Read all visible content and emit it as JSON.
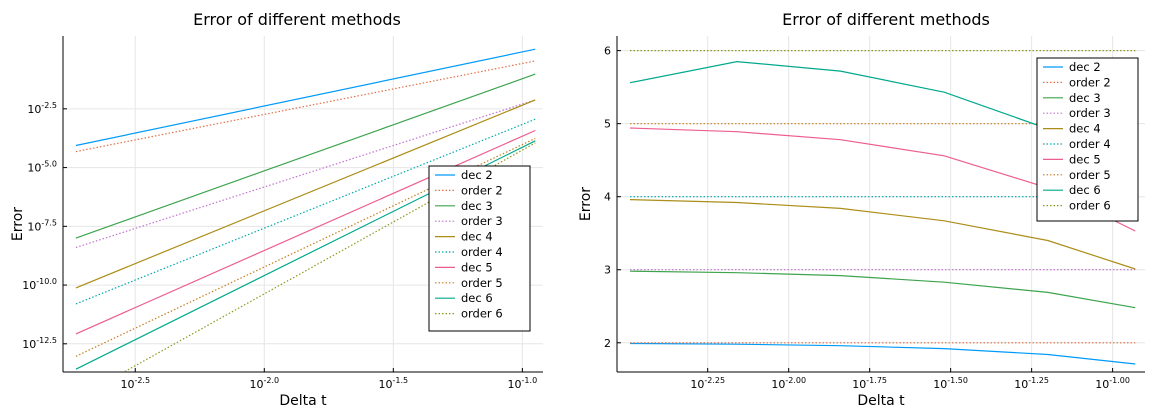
{
  "chart_data": [
    {
      "type": "line",
      "title": "Error of different methods",
      "xlabel": "Delta t",
      "ylabel": "Error",
      "x_scale": "log10",
      "y_scale": "log10",
      "xlim_log10": [
        -2.78,
        -0.92
      ],
      "ylim_log10": [
        -13.7,
        0.6
      ],
      "x_ticks": [
        {
          "value": -2.5,
          "base": "10",
          "exp": "-2.5"
        },
        {
          "value": -2.0,
          "base": "10",
          "exp": "-2.0"
        },
        {
          "value": -1.5,
          "base": "10",
          "exp": "-1.5"
        },
        {
          "value": -1.0,
          "base": "10",
          "exp": "-1.0"
        }
      ],
      "y_ticks": [
        {
          "value": -2.5,
          "base": "10",
          "exp": "-2.5"
        },
        {
          "value": -5.0,
          "base": "10",
          "exp": "-5.0"
        },
        {
          "value": -7.5,
          "base": "10",
          "exp": "-7.5"
        },
        {
          "value": -10.0,
          "base": "10",
          "exp": "-10.0"
        },
        {
          "value": -12.5,
          "base": "10",
          "exp": "-12.5"
        }
      ],
      "grid": true,
      "legend_position": "right",
      "x_log10": [
        -2.73,
        -0.95
      ],
      "series": [
        {
          "name": "dec 2",
          "color": "#009af9",
          "dashed": false,
          "y_log10": [
            -4.06,
            0.04
          ]
        },
        {
          "name": "order 2",
          "color": "#e26f46",
          "dashed": true,
          "y_log10": [
            -4.32,
            -0.46
          ]
        },
        {
          "name": "dec 3",
          "color": "#3da44d",
          "dashed": false,
          "y_log10": [
            -8.0,
            -1.02
          ]
        },
        {
          "name": "order 3",
          "color": "#c271d2",
          "dashed": true,
          "y_log10": [
            -8.4,
            -2.12
          ]
        },
        {
          "name": "dec 4",
          "color": "#ac8d18",
          "dashed": false,
          "y_log10": [
            -10.12,
            -2.12
          ]
        },
        {
          "name": "order 4",
          "color": "#00a9ad",
          "dashed": true,
          "y_log10": [
            -10.8,
            -2.94
          ]
        },
        {
          "name": "dec 5",
          "color": "#ed5d92",
          "dashed": false,
          "y_log10": [
            -12.08,
            -3.42
          ]
        },
        {
          "name": "order 5",
          "color": "#c68125",
          "dashed": true,
          "y_log10": [
            -13.03,
            -3.76
          ]
        },
        {
          "name": "dec 6",
          "color": "#00a98d",
          "dashed": false,
          "y_log10": [
            -13.58,
            -3.86
          ]
        },
        {
          "name": "order 6",
          "color": "#8e971d",
          "dashed": true,
          "y_log10": [
            -14.84,
            -3.95
          ]
        }
      ]
    },
    {
      "type": "line",
      "title": "Error of different methods",
      "xlabel": "Delta t",
      "ylabel": "Error",
      "x_scale": "log10",
      "xlim_log10": [
        -2.53,
        -0.9
      ],
      "ylim": [
        1.6,
        6.2
      ],
      "x_ticks": [
        {
          "value": -2.25,
          "base": "10",
          "exp": "-2.25"
        },
        {
          "value": -2.0,
          "base": "10",
          "exp": "-2.00"
        },
        {
          "value": -1.75,
          "base": "10",
          "exp": "-1.75"
        },
        {
          "value": -1.5,
          "base": "10",
          "exp": "-1.50"
        },
        {
          "value": -1.25,
          "base": "10",
          "exp": "-1.25"
        },
        {
          "value": -1.0,
          "base": "10",
          "exp": "-1.00"
        }
      ],
      "y_ticks": [
        2,
        3,
        4,
        5,
        6
      ],
      "grid": true,
      "legend_position": "top-right",
      "x_log10": [
        -2.49,
        -2.16,
        -1.84,
        -1.52,
        -1.2,
        -0.93
      ],
      "series": [
        {
          "name": "dec 2",
          "color": "#009af9",
          "dashed": false,
          "y": [
            1.99,
            1.98,
            1.96,
            1.92,
            1.84,
            1.71
          ]
        },
        {
          "name": "order 2",
          "color": "#e26f46",
          "dashed": true,
          "y": [
            2,
            2,
            2,
            2,
            2,
            2
          ]
        },
        {
          "name": "dec 3",
          "color": "#3da44d",
          "dashed": false,
          "y": [
            2.98,
            2.96,
            2.92,
            2.83,
            2.69,
            2.48
          ]
        },
        {
          "name": "order 3",
          "color": "#c271d2",
          "dashed": true,
          "y": [
            3,
            3,
            3,
            3,
            3,
            3
          ]
        },
        {
          "name": "dec 4",
          "color": "#ac8d18",
          "dashed": false,
          "y": [
            3.96,
            3.92,
            3.84,
            3.67,
            3.4,
            3.01
          ]
        },
        {
          "name": "order 4",
          "color": "#00a9ad",
          "dashed": true,
          "y": [
            4,
            4,
            4,
            4,
            4,
            4
          ]
        },
        {
          "name": "dec 5",
          "color": "#ed5d92",
          "dashed": false,
          "y": [
            4.94,
            4.89,
            4.78,
            4.56,
            4.12,
            3.53
          ]
        },
        {
          "name": "order 5",
          "color": "#c68125",
          "dashed": true,
          "y": [
            5,
            5,
            5,
            5,
            5,
            5
          ]
        },
        {
          "name": "dec 6",
          "color": "#00a98d",
          "dashed": false,
          "y": [
            5.56,
            5.85,
            5.72,
            5.43,
            4.93,
            4.13
          ]
        },
        {
          "name": "order 6",
          "color": "#8e971d",
          "dashed": true,
          "y": [
            6,
            6,
            6,
            6,
            6,
            6
          ]
        }
      ]
    }
  ]
}
